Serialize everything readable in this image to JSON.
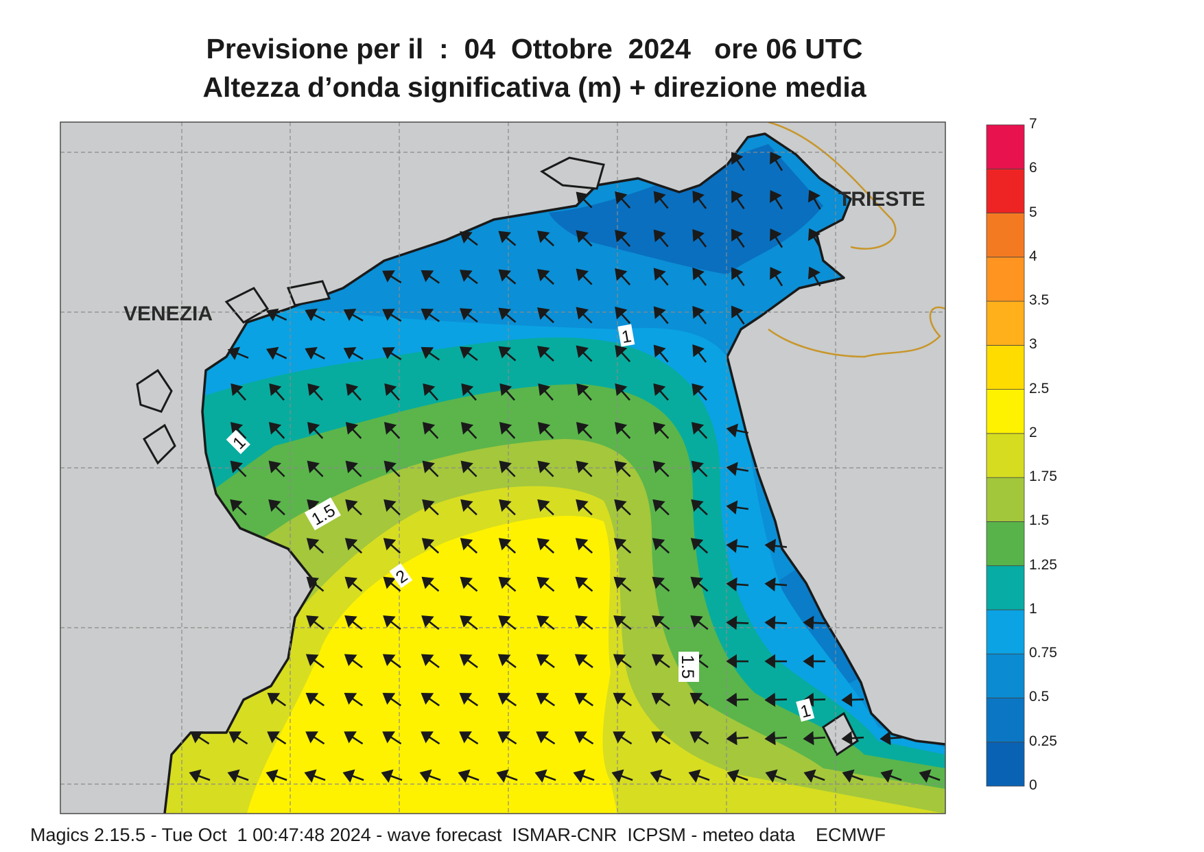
{
  "title_line1": "Previsione per il  :  04  Ottobre  2024   ore 06 UTC",
  "title_line2": "Altezza d’onda significativa (m) + direzione media",
  "cities": {
    "venezia": "VENEZIA",
    "trieste": "TRIESTE"
  },
  "contour_labels": [
    "1",
    "1",
    "1.5",
    "2",
    "1.5",
    "1"
  ],
  "colorbar": {
    "ticks": [
      "0",
      "0.25",
      "0.5",
      "0.75",
      "1",
      "1.25",
      "1.5",
      "1.75",
      "2",
      "2.5",
      "3",
      "3.5",
      "4",
      "5",
      "6",
      "7"
    ],
    "colors": [
      "#0a62b4",
      "#0a76c4",
      "#0a8bd2",
      "#0ba3e4",
      "#07aca4",
      "#58b44a",
      "#a3c73b",
      "#d6dd20",
      "#fff200",
      "#ffdc00",
      "#ffb01a",
      "#ff9420",
      "#f47a22",
      "#ee2424",
      "#e8124f"
    ]
  },
  "colors": {
    "land": "#cacccd",
    "coast": "#1a1a1a",
    "border": "#c8962a",
    "grid": "#8a8a8a",
    "arrow": "#1a1a1a"
  },
  "footer": "Magics 2.15.5 - Tue Oct  1 00:47:48 2024 - wave forecast  ISMAR-CNR  ICPSM - meteo data    ECMWF"
}
